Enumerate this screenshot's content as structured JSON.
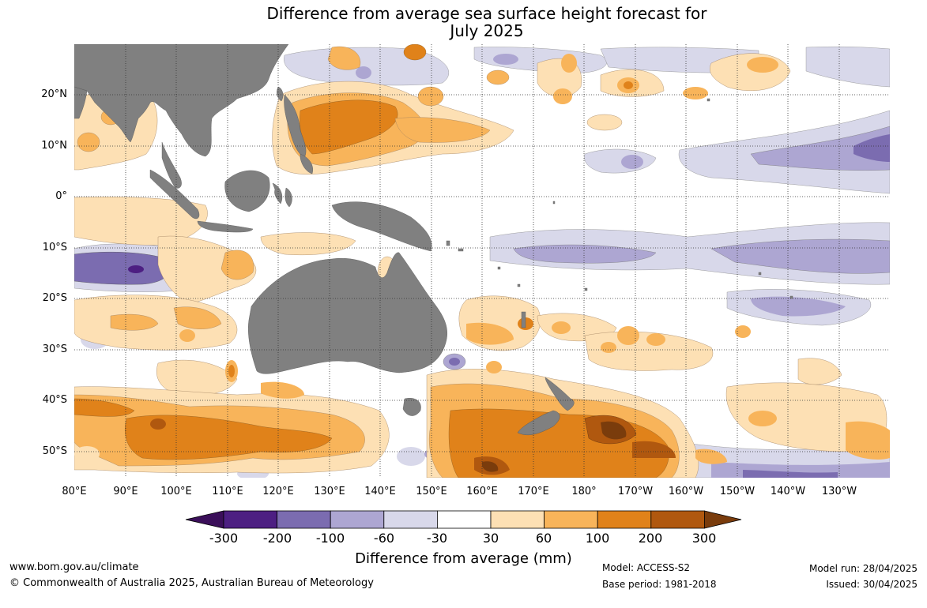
{
  "title_line1": "Difference from average sea surface height forecast for",
  "title_line2": "July 2025",
  "lat_labels": [
    "20°N",
    "10°N",
    "0°",
    "10°S",
    "20°S",
    "30°S",
    "40°S",
    "50°S"
  ],
  "lon_labels": [
    "80°E",
    "90°E",
    "100°E",
    "110°E",
    "120°E",
    "130°E",
    "140°E",
    "150°E",
    "160°E",
    "170°E",
    "180°",
    "170°W",
    "160°W",
    "150°W",
    "140°W",
    "130°W"
  ],
  "colorbar": {
    "labels": [
      "-300",
      "-200",
      "-100",
      "-60",
      "-30",
      "30",
      "60",
      "100",
      "200",
      "300"
    ],
    "colors": [
      "#3b0f5a",
      "#4d1f82",
      "#7b6cb0",
      "#ada6d2",
      "#d8d8ea",
      "#ffffff",
      "#fde0b4",
      "#f8b45a",
      "#e0821a",
      "#b0580f",
      "#7a3c0c"
    ],
    "title": "Difference from average (mm)"
  },
  "colors": {
    "land": "#808080",
    "positive_light": "#fde0b4",
    "positive_mid": "#f8b45a",
    "positive_strong": "#e0821a",
    "positive_very": "#b0580f",
    "negative_light": "#d8d8ea",
    "negative_mid": "#ada6d2",
    "negative_strong": "#7b6cb0",
    "negative_very": "#4d1f82"
  },
  "footer": {
    "url": "www.bom.gov.au/climate",
    "copyright": "© Commonwealth of Australia 2025, Australian Bureau of Meteorology",
    "model": "Model: ACCESS-S2",
    "base_period": "Base period: 1981-2018",
    "model_run": "Model run: 28/04/2025",
    "issued": "Issued: 30/04/2025"
  }
}
